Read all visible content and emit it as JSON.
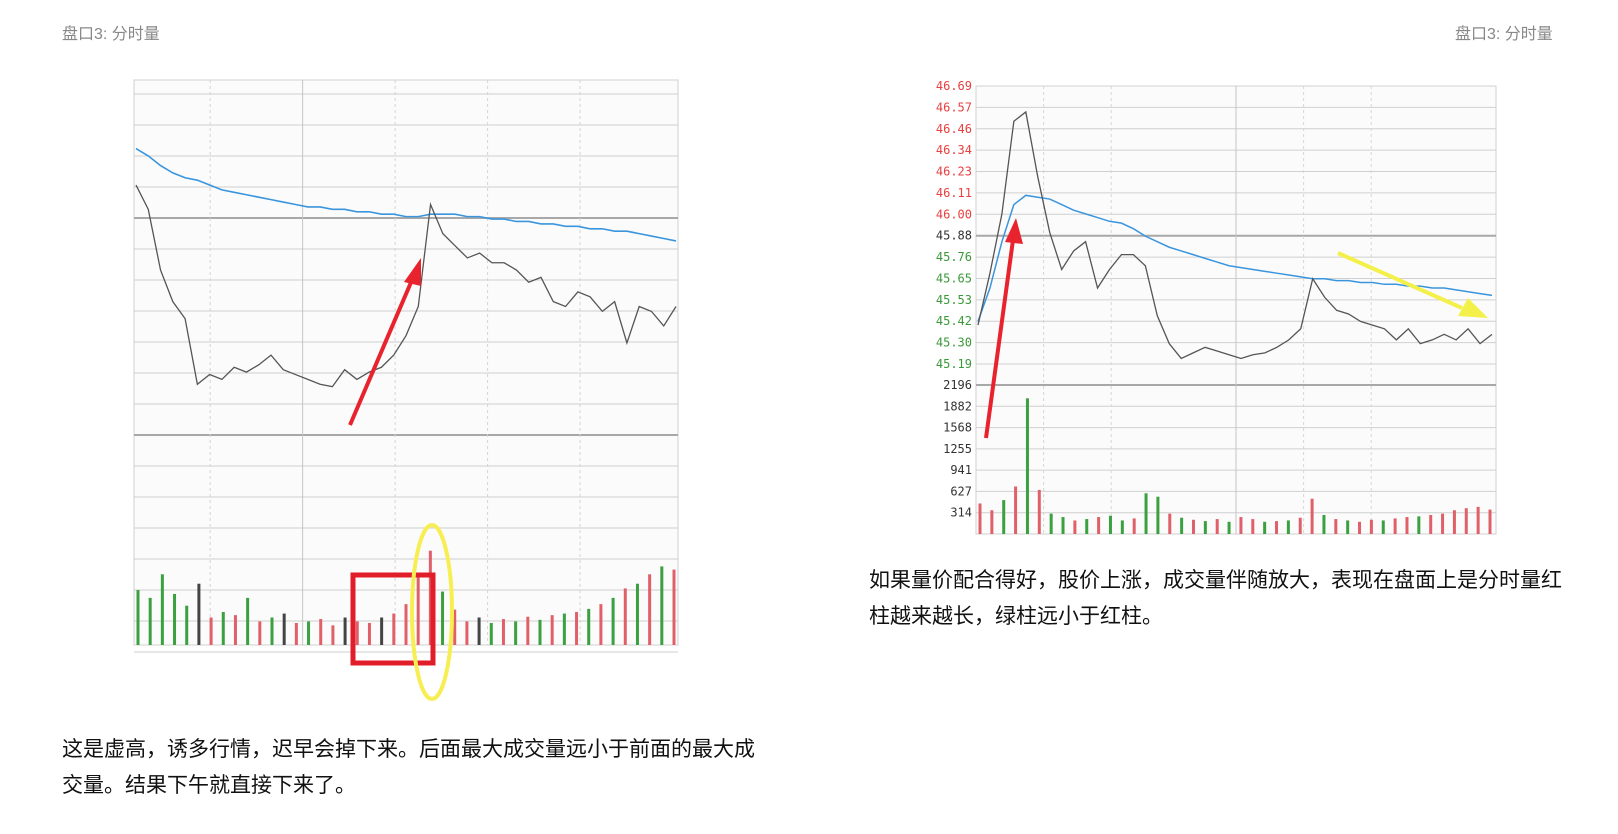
{
  "left": {
    "label": "盘口3: 分时量",
    "caption": "这是虚高，诱多行情，迟早会掉下来。后面最大成交量远小于前面的最大成交量。结果下午就直接下来了。"
  },
  "right": {
    "label": "盘口3: 分时量",
    "caption": "如果量价配合得好，股价上涨，成交量伴随放大，表现在盘面上是分时量红柱越来越长，绿柱远小于红柱。"
  },
  "colors": {
    "price_line": "#555555",
    "avg_line": "#3a95dd",
    "up_bar": "#e0606a",
    "down_bar": "#3aa040",
    "neutral_bar": "#444444",
    "arrow_red": "#e8232e",
    "arrow_yellow": "#f4f04a",
    "highlight_box": "#e11d2a",
    "highlight_ellipse": "#f7ef52",
    "tick_red": "#e84040",
    "tick_green": "#3a9a3a",
    "tick_neutral": "#333333"
  },
  "chart_data": [
    {
      "type": "line",
      "title": "",
      "xlabel": "",
      "ylabel": "",
      "grid": true,
      "series": [
        {
          "values": [
            46.2,
            46.1,
            45.85,
            45.72,
            45.65,
            45.38,
            45.42,
            45.4,
            45.45,
            45.43,
            45.46,
            45.5,
            45.44,
            45.42,
            45.4,
            45.38,
            45.37,
            45.44,
            45.4,
            45.43,
            45.45,
            45.5,
            45.58,
            45.7,
            46.12,
            46.0,
            45.95,
            45.9,
            45.92,
            45.88,
            45.88,
            45.85,
            45.8,
            45.82,
            45.72,
            45.7,
            45.76,
            45.74,
            45.68,
            45.72,
            45.55,
            45.7,
            45.68,
            45.62,
            45.7
          ]
        },
        {
          "values": [
            46.35,
            46.32,
            46.28,
            46.25,
            46.23,
            46.22,
            46.2,
            46.18,
            46.17,
            46.16,
            46.15,
            46.14,
            46.13,
            46.12,
            46.11,
            46.11,
            46.1,
            46.1,
            46.09,
            46.09,
            46.08,
            46.08,
            46.07,
            46.07,
            46.08,
            46.08,
            46.08,
            46.07,
            46.07,
            46.06,
            46.06,
            46.05,
            46.05,
            46.04,
            46.04,
            46.03,
            46.03,
            46.02,
            46.02,
            46.01,
            46.01,
            46.0,
            45.99,
            45.98,
            45.97
          ]
        }
      ],
      "volume": [
        700,
        600,
        900,
        650,
        500,
        780,
        350,
        420,
        380,
        600,
        300,
        350,
        400,
        280,
        300,
        330,
        250,
        350,
        300,
        280,
        350,
        400,
        520,
        900,
        1200,
        680,
        450,
        300,
        350,
        280,
        330,
        300,
        360,
        320,
        380,
        400,
        420,
        460,
        520,
        600,
        720,
        780,
        900,
        1000,
        960
      ],
      "volume_color": [
        "down",
        "down",
        "down",
        "down",
        "down",
        "neutral",
        "up",
        "down",
        "up",
        "down",
        "up",
        "down",
        "neutral",
        "up",
        "down",
        "up",
        "up",
        "neutral",
        "up",
        "up",
        "neutral",
        "up",
        "up",
        "up",
        "up",
        "down",
        "up",
        "up",
        "neutral",
        "down",
        "up",
        "down",
        "up",
        "down",
        "up",
        "down",
        "up",
        "down",
        "up",
        "down",
        "up",
        "down",
        "up",
        "down",
        "up"
      ],
      "annotations": [
        "red arrow to price peak",
        "red box around volume bars",
        "yellow ellipse around peak volume bar"
      ]
    },
    {
      "type": "line",
      "title": "",
      "xlabel": "",
      "ylabel": "",
      "grid": true,
      "ylim": [
        45.19,
        46.69
      ],
      "y_ticks": [
        "46.69",
        "46.57",
        "46.46",
        "46.34",
        "46.23",
        "46.11",
        "46.00",
        "45.88",
        "45.76",
        "45.65",
        "45.53",
        "45.42",
        "45.30",
        "45.19"
      ],
      "volume_ylim": [
        0,
        2196
      ],
      "volume_ticks": [
        "2196",
        "1882",
        "1568",
        "1255",
        "941",
        "627",
        "314"
      ],
      "series": [
        {
          "values": [
            45.4,
            45.68,
            46.0,
            46.5,
            46.55,
            46.2,
            45.9,
            45.7,
            45.8,
            45.85,
            45.6,
            45.7,
            45.78,
            45.78,
            45.72,
            45.45,
            45.3,
            45.22,
            45.25,
            45.28,
            45.26,
            45.24,
            45.22,
            45.24,
            45.25,
            45.28,
            45.32,
            45.38,
            45.65,
            45.55,
            45.48,
            45.46,
            45.42,
            45.4,
            45.38,
            45.32,
            45.38,
            45.3,
            45.32,
            45.35,
            45.32,
            45.38,
            45.3,
            45.35
          ]
        },
        {
          "values": [
            45.42,
            45.6,
            45.85,
            46.05,
            46.1,
            46.09,
            46.08,
            46.05,
            46.02,
            46.0,
            45.98,
            45.96,
            45.95,
            45.92,
            45.88,
            45.85,
            45.82,
            45.8,
            45.78,
            45.76,
            45.74,
            45.72,
            45.71,
            45.7,
            45.69,
            45.68,
            45.67,
            45.66,
            45.65,
            45.65,
            45.64,
            45.64,
            45.63,
            45.63,
            45.62,
            45.62,
            45.61,
            45.61,
            45.6,
            45.6,
            45.59,
            45.58,
            45.57,
            45.56
          ]
        }
      ],
      "volume": [
        450,
        350,
        500,
        700,
        2000,
        650,
        300,
        250,
        200,
        220,
        250,
        270,
        200,
        230,
        600,
        550,
        300,
        240,
        210,
        190,
        220,
        180,
        250,
        220,
        180,
        190,
        200,
        240,
        520,
        280,
        220,
        200,
        180,
        210,
        200,
        230,
        250,
        260,
        280,
        300,
        350,
        380,
        400,
        360
      ],
      "volume_color": [
        "up",
        "up",
        "down",
        "up",
        "down",
        "up",
        "down",
        "down",
        "up",
        "down",
        "up",
        "down",
        "down",
        "up",
        "down",
        "down",
        "up",
        "down",
        "up",
        "down",
        "up",
        "down",
        "up",
        "up",
        "down",
        "up",
        "down",
        "up",
        "up",
        "down",
        "up",
        "down",
        "up",
        "up",
        "down",
        "up",
        "up",
        "down",
        "up",
        "up",
        "up",
        "up",
        "up",
        "up"
      ],
      "annotations": [
        "red arrow to price peak",
        "yellow arrow pointing down-right"
      ]
    }
  ]
}
